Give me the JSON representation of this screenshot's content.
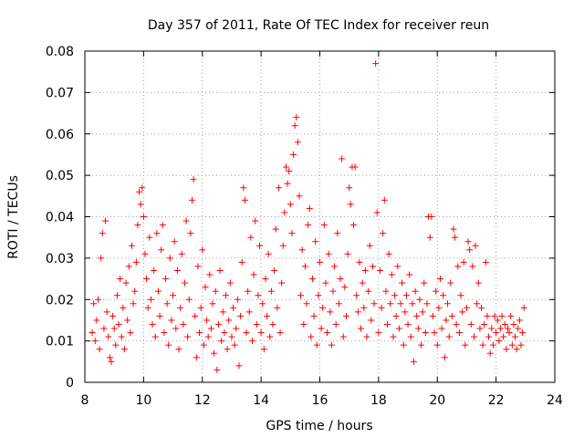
{
  "chart_data": {
    "type": "scatter",
    "title": "Day 357 of 2011, Rate Of TEC Index for receiver reun",
    "xlabel": "GPS time / hours",
    "ylabel": "ROTI / TECUs",
    "xlim": [
      8,
      24
    ],
    "ylim": [
      0,
      0.08
    ],
    "xticks": [
      8,
      10,
      12,
      14,
      16,
      18,
      20,
      22,
      24
    ],
    "yticks": [
      0,
      0.01,
      0.02,
      0.03,
      0.04,
      0.05,
      0.06,
      0.07,
      0.08
    ],
    "xtick_labels": [
      "8",
      "10",
      "12",
      "14",
      "16",
      "18",
      "20",
      "22",
      "24"
    ],
    "ytick_labels": [
      "0",
      "0.01",
      "0.02",
      "0.03",
      "0.04",
      "0.05",
      "0.06",
      "0.07",
      "0.08"
    ],
    "grid": true,
    "marker": "+",
    "marker_color": "#ff0000",
    "series": [
      {
        "name": "ROTI",
        "points": [
          [
            8.25,
            0.012
          ],
          [
            8.3,
            0.019
          ],
          [
            8.35,
            0.01
          ],
          [
            8.4,
            0.015
          ],
          [
            8.45,
            0.02
          ],
          [
            8.5,
            0.008
          ],
          [
            8.55,
            0.03
          ],
          [
            8.6,
            0.036
          ],
          [
            8.65,
            0.013
          ],
          [
            8.7,
            0.039
          ],
          [
            8.75,
            0.017
          ],
          [
            8.8,
            0.011
          ],
          [
            8.85,
            0.006
          ],
          [
            8.9,
            0.005
          ],
          [
            8.95,
            0.016
          ],
          [
            9.0,
            0.013
          ],
          [
            9.05,
            0.009
          ],
          [
            9.1,
            0.021
          ],
          [
            9.15,
            0.014
          ],
          [
            9.2,
            0.025
          ],
          [
            9.25,
            0.011
          ],
          [
            9.3,
            0.018
          ],
          [
            9.35,
            0.008
          ],
          [
            9.4,
            0.024
          ],
          [
            9.45,
            0.015
          ],
          [
            9.5,
            0.028
          ],
          [
            9.55,
            0.012
          ],
          [
            9.6,
            0.033
          ],
          [
            9.65,
            0.019
          ],
          [
            9.7,
            0.022
          ],
          [
            9.75,
            0.029
          ],
          [
            9.8,
            0.038
          ],
          [
            9.85,
            0.046
          ],
          [
            9.9,
            0.043
          ],
          [
            9.95,
            0.047
          ],
          [
            10.0,
            0.04
          ],
          [
            10.05,
            0.031
          ],
          [
            10.1,
            0.025
          ],
          [
            10.15,
            0.018
          ],
          [
            10.2,
            0.035
          ],
          [
            10.25,
            0.02
          ],
          [
            10.3,
            0.014
          ],
          [
            10.35,
            0.027
          ],
          [
            10.4,
            0.011
          ],
          [
            10.45,
            0.036
          ],
          [
            10.5,
            0.022
          ],
          [
            10.55,
            0.016
          ],
          [
            10.6,
            0.032
          ],
          [
            10.65,
            0.038
          ],
          [
            10.7,
            0.012
          ],
          [
            10.75,
            0.025
          ],
          [
            10.8,
            0.019
          ],
          [
            10.85,
            0.009
          ],
          [
            10.9,
            0.03
          ],
          [
            10.95,
            0.015
          ],
          [
            11.0,
            0.021
          ],
          [
            11.05,
            0.034
          ],
          [
            11.1,
            0.013
          ],
          [
            11.15,
            0.027
          ],
          [
            11.2,
            0.008
          ],
          [
            11.25,
            0.018
          ],
          [
            11.3,
            0.031
          ],
          [
            11.35,
            0.014
          ],
          [
            11.4,
            0.024
          ],
          [
            11.45,
            0.039
          ],
          [
            11.5,
            0.011
          ],
          [
            11.55,
            0.02
          ],
          [
            11.6,
            0.036
          ],
          [
            11.65,
            0.044
          ],
          [
            11.7,
            0.049
          ],
          [
            11.75,
            0.016
          ],
          [
            11.8,
            0.006
          ],
          [
            11.85,
            0.028
          ],
          [
            11.9,
            0.012
          ],
          [
            11.95,
            0.018
          ],
          [
            12.0,
            0.032
          ],
          [
            12.05,
            0.009
          ],
          [
            12.1,
            0.023
          ],
          [
            12.15,
            0.015
          ],
          [
            12.2,
            0.011
          ],
          [
            12.25,
            0.026
          ],
          [
            12.3,
            0.013
          ],
          [
            12.35,
            0.019
          ],
          [
            12.4,
            0.007
          ],
          [
            12.45,
            0.022
          ],
          [
            12.5,
            0.003
          ],
          [
            12.55,
            0.014
          ],
          [
            12.6,
            0.027
          ],
          [
            12.65,
            0.01
          ],
          [
            12.7,
            0.017
          ],
          [
            12.75,
            0.012
          ],
          [
            12.8,
            0.021
          ],
          [
            12.85,
            0.008
          ],
          [
            12.9,
            0.015
          ],
          [
            12.95,
            0.024
          ],
          [
            13.0,
            0.011
          ],
          [
            13.05,
            0.018
          ],
          [
            13.1,
            0.009
          ],
          [
            13.15,
            0.013
          ],
          [
            13.2,
            0.02
          ],
          [
            13.25,
            0.004
          ],
          [
            13.3,
            0.016
          ],
          [
            13.35,
            0.029
          ],
          [
            13.4,
            0.047
          ],
          [
            13.45,
            0.044
          ],
          [
            13.5,
            0.012
          ],
          [
            13.55,
            0.022
          ],
          [
            13.6,
            0.017
          ],
          [
            13.65,
            0.035
          ],
          [
            13.7,
            0.01
          ],
          [
            13.75,
            0.026
          ],
          [
            13.8,
            0.039
          ],
          [
            13.85,
            0.014
          ],
          [
            13.9,
            0.021
          ],
          [
            13.95,
            0.033
          ],
          [
            14.0,
            0.012
          ],
          [
            14.05,
            0.019
          ],
          [
            14.1,
            0.008
          ],
          [
            14.15,
            0.025
          ],
          [
            14.2,
            0.016
          ],
          [
            14.25,
            0.031
          ],
          [
            14.3,
            0.011
          ],
          [
            14.35,
            0.022
          ],
          [
            14.4,
            0.014
          ],
          [
            14.45,
            0.027
          ],
          [
            14.5,
            0.037
          ],
          [
            14.55,
            0.018
          ],
          [
            14.6,
            0.047
          ],
          [
            14.65,
            0.012
          ],
          [
            14.7,
            0.024
          ],
          [
            14.75,
            0.033
          ],
          [
            14.8,
            0.041
          ],
          [
            14.85,
            0.052
          ],
          [
            14.9,
            0.048
          ],
          [
            14.95,
            0.051
          ],
          [
            15.0,
            0.043
          ],
          [
            15.05,
            0.036
          ],
          [
            15.1,
            0.055
          ],
          [
            15.15,
            0.062
          ],
          [
            15.2,
            0.064
          ],
          [
            15.25,
            0.058
          ],
          [
            15.3,
            0.045
          ],
          [
            15.35,
            0.021
          ],
          [
            15.4,
            0.032
          ],
          [
            15.45,
            0.014
          ],
          [
            15.5,
            0.028
          ],
          [
            15.55,
            0.019
          ],
          [
            15.6,
            0.038
          ],
          [
            15.65,
            0.042
          ],
          [
            15.7,
            0.011
          ],
          [
            15.75,
            0.025
          ],
          [
            15.8,
            0.016
          ],
          [
            15.85,
            0.034
          ],
          [
            15.9,
            0.009
          ],
          [
            15.95,
            0.021
          ],
          [
            16.0,
            0.029
          ],
          [
            16.05,
            0.013
          ],
          [
            16.1,
            0.018
          ],
          [
            16.15,
            0.038
          ],
          [
            16.2,
            0.024
          ],
          [
            16.25,
            0.012
          ],
          [
            16.3,
            0.031
          ],
          [
            16.35,
            0.017
          ],
          [
            16.4,
            0.009
          ],
          [
            16.45,
            0.022
          ],
          [
            16.5,
            0.028
          ],
          [
            16.55,
            0.014
          ],
          [
            16.6,
            0.036
          ],
          [
            16.65,
            0.019
          ],
          [
            16.7,
            0.025
          ],
          [
            16.75,
            0.054
          ],
          [
            16.8,
            0.011
          ],
          [
            16.85,
            0.023
          ],
          [
            16.9,
            0.016
          ],
          [
            16.95,
            0.031
          ],
          [
            17.0,
            0.047
          ],
          [
            17.05,
            0.043
          ],
          [
            17.1,
            0.052
          ],
          [
            17.15,
            0.038
          ],
          [
            17.2,
            0.052
          ],
          [
            17.25,
            0.021
          ],
          [
            17.3,
            0.017
          ],
          [
            17.35,
            0.029
          ],
          [
            17.4,
            0.013
          ],
          [
            17.45,
            0.024
          ],
          [
            17.5,
            0.018
          ],
          [
            17.55,
            0.027
          ],
          [
            17.6,
            0.011
          ],
          [
            17.65,
            0.022
          ],
          [
            17.7,
            0.033
          ],
          [
            17.75,
            0.015
          ],
          [
            17.8,
            0.028
          ],
          [
            17.85,
            0.019
          ],
          [
            17.9,
            0.077
          ],
          [
            17.95,
            0.041
          ],
          [
            18.0,
            0.012
          ],
          [
            18.05,
            0.027
          ],
          [
            18.1,
            0.018
          ],
          [
            18.15,
            0.036
          ],
          [
            18.2,
            0.044
          ],
          [
            18.25,
            0.022
          ],
          [
            18.3,
            0.014
          ],
          [
            18.35,
            0.031
          ],
          [
            18.4,
            0.019
          ],
          [
            18.45,
            0.026
          ],
          [
            18.5,
            0.011
          ],
          [
            18.55,
            0.021
          ],
          [
            18.6,
            0.016
          ],
          [
            18.65,
            0.028
          ],
          [
            18.7,
            0.013
          ],
          [
            18.75,
            0.019
          ],
          [
            18.8,
            0.024
          ],
          [
            18.85,
            0.009
          ],
          [
            18.9,
            0.017
          ],
          [
            18.95,
            0.021
          ],
          [
            19.0,
            0.014
          ],
          [
            19.05,
            0.026
          ],
          [
            19.1,
            0.011
          ],
          [
            19.15,
            0.019
          ],
          [
            19.2,
            0.005
          ],
          [
            19.25,
            0.022
          ],
          [
            19.3,
            0.016
          ],
          [
            19.35,
            0.013
          ],
          [
            19.4,
            0.02
          ],
          [
            19.45,
            0.009
          ],
          [
            19.5,
            0.017
          ],
          [
            19.55,
            0.024
          ],
          [
            19.6,
            0.012
          ],
          [
            19.65,
            0.019
          ],
          [
            19.7,
            0.04
          ],
          [
            19.75,
            0.035
          ],
          [
            19.8,
            0.04
          ],
          [
            19.85,
            0.016
          ],
          [
            19.9,
            0.012
          ],
          [
            19.95,
            0.022
          ],
          [
            20.0,
            0.009
          ],
          [
            20.05,
            0.018
          ],
          [
            20.1,
            0.025
          ],
          [
            20.15,
            0.013
          ],
          [
            20.2,
            0.021
          ],
          [
            20.25,
            0.006
          ],
          [
            20.3,
            0.015
          ],
          [
            20.35,
            0.019
          ],
          [
            20.4,
            0.011
          ],
          [
            20.45,
            0.024
          ],
          [
            20.5,
            0.016
          ],
          [
            20.55,
            0.037
          ],
          [
            20.6,
            0.035
          ],
          [
            20.65,
            0.014
          ],
          [
            20.7,
            0.028
          ],
          [
            20.75,
            0.012
          ],
          [
            20.8,
            0.021
          ],
          [
            20.85,
            0.017
          ],
          [
            20.9,
            0.029
          ],
          [
            20.95,
            0.009
          ],
          [
            21.0,
            0.018
          ],
          [
            21.05,
            0.034
          ],
          [
            21.1,
            0.032
          ],
          [
            21.15,
            0.014
          ],
          [
            21.2,
            0.028
          ],
          [
            21.25,
            0.011
          ],
          [
            21.3,
            0.033
          ],
          [
            21.35,
            0.019
          ],
          [
            21.4,
            0.024
          ],
          [
            21.45,
            0.013
          ],
          [
            21.5,
            0.018
          ],
          [
            21.55,
            0.009
          ],
          [
            21.6,
            0.014
          ],
          [
            21.65,
            0.029
          ],
          [
            21.7,
            0.016
          ],
          [
            21.75,
            0.011
          ],
          [
            21.8,
            0.007
          ],
          [
            21.85,
            0.013
          ],
          [
            21.9,
            0.009
          ],
          [
            21.95,
            0.016
          ],
          [
            22.0,
            0.012
          ],
          [
            22.05,
            0.015
          ],
          [
            22.1,
            0.01
          ],
          [
            22.15,
            0.013
          ],
          [
            22.2,
            0.016
          ],
          [
            22.25,
            0.011
          ],
          [
            22.3,
            0.014
          ],
          [
            22.35,
            0.008
          ],
          [
            22.4,
            0.013
          ],
          [
            22.45,
            0.012
          ],
          [
            22.5,
            0.016
          ],
          [
            22.55,
            0.009
          ],
          [
            22.6,
            0.014
          ],
          [
            22.65,
            0.011
          ],
          [
            22.7,
            0.008
          ],
          [
            22.75,
            0.013
          ],
          [
            22.8,
            0.015
          ],
          [
            22.85,
            0.009
          ],
          [
            22.9,
            0.012
          ],
          [
            22.95,
            0.018
          ]
        ]
      }
    ]
  }
}
